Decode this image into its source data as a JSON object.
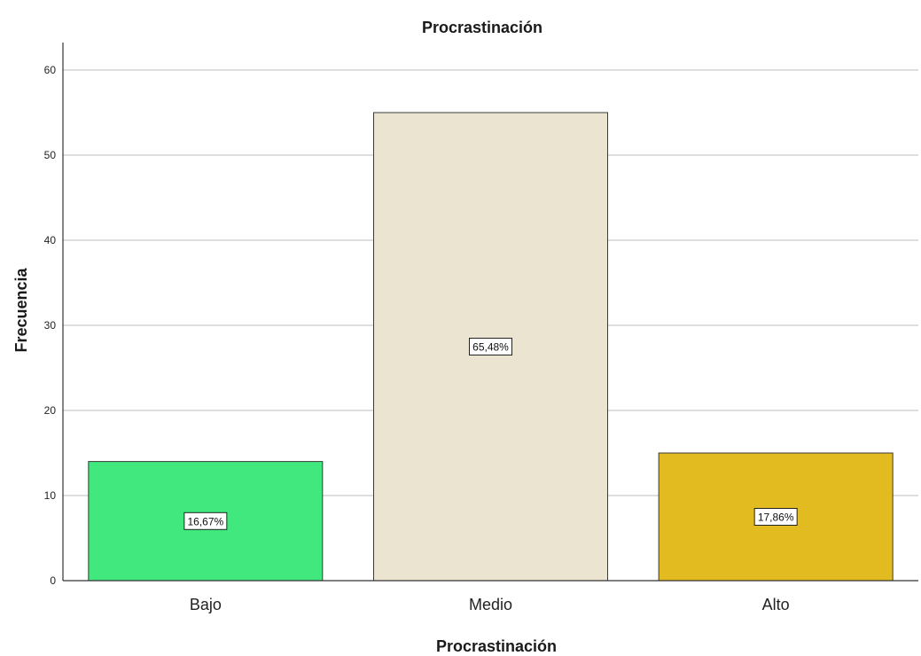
{
  "chart_data": {
    "type": "bar",
    "title": "Procrastinación",
    "xlabel": "Procrastinación",
    "ylabel": "Frecuencia",
    "categories": [
      "Bajo",
      "Medio",
      "Alto"
    ],
    "values": [
      14,
      55,
      15
    ],
    "data_labels": [
      "16,67%",
      "65,48%",
      "17,86%"
    ],
    "bar_colors": [
      "#40e87e",
      "#ebe4d1",
      "#e1bb1f"
    ],
    "ylim": [
      0,
      62
    ],
    "yticks": [
      0,
      10,
      20,
      30,
      40,
      50,
      60
    ],
    "grid": true
  }
}
